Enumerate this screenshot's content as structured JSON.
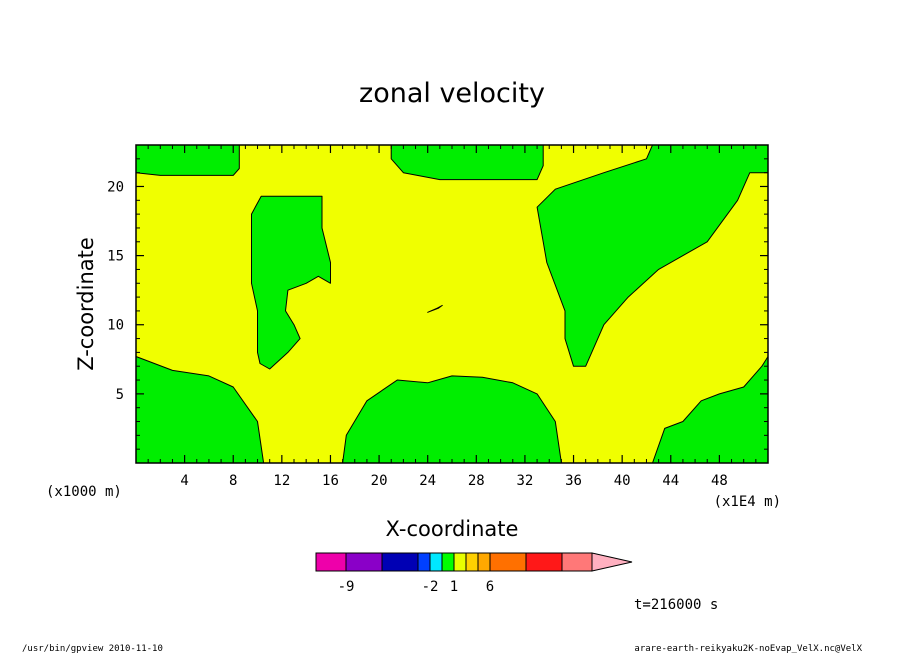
{
  "chart_data": {
    "type": "heatmap",
    "title": "zonal velocity",
    "xlabel": "X-coordinate",
    "ylabel": "Z-coordinate",
    "x_unit_left": "(x1000 m)",
    "x_unit_right": "(x1E4 m)",
    "xlim": [
      0,
      52
    ],
    "ylim": [
      0,
      23
    ],
    "xticks": [
      4,
      8,
      12,
      16,
      20,
      24,
      28,
      32,
      36,
      40,
      44,
      48
    ],
    "yticks": [
      5,
      10,
      15,
      20
    ],
    "colors": {
      "negative_region": "#00ee00",
      "positive_region": "#f0ff00"
    },
    "regions": [
      {
        "level": "green",
        "polygon": [
          [
            0,
            23
          ],
          [
            8.5,
            23
          ],
          [
            8.5,
            21.3
          ],
          [
            8,
            20.8
          ],
          [
            2,
            20.8
          ],
          [
            0,
            21
          ]
        ]
      },
      {
        "level": "green",
        "polygon": [
          [
            21,
            23
          ],
          [
            33.5,
            23
          ],
          [
            33.5,
            21.5
          ],
          [
            33,
            20.5
          ],
          [
            25,
            20.5
          ],
          [
            22,
            21
          ],
          [
            21,
            22
          ]
        ]
      },
      {
        "level": "green",
        "polygon": [
          [
            42.5,
            23
          ],
          [
            52,
            23
          ],
          [
            52,
            21
          ],
          [
            50.5,
            21
          ],
          [
            49.5,
            19
          ],
          [
            47,
            16
          ],
          [
            43,
            14
          ],
          [
            40.5,
            12
          ],
          [
            38.5,
            10
          ],
          [
            37,
            7
          ],
          [
            36,
            7
          ],
          [
            35.3,
            9
          ],
          [
            35.3,
            11
          ],
          [
            33.8,
            14.5
          ],
          [
            33.5,
            16
          ],
          [
            33,
            18.5
          ],
          [
            34.5,
            19.8
          ],
          [
            38.5,
            21
          ],
          [
            42,
            22
          ]
        ]
      },
      {
        "level": "green",
        "polygon": [
          [
            10.3,
            19.3
          ],
          [
            15.3,
            19.3
          ],
          [
            15.3,
            17
          ],
          [
            16,
            14.5
          ],
          [
            16,
            13
          ],
          [
            15,
            13.5
          ],
          [
            14,
            13
          ],
          [
            12.5,
            12.5
          ],
          [
            12.3,
            11
          ],
          [
            13,
            10
          ],
          [
            13.5,
            9
          ],
          [
            12.5,
            8
          ],
          [
            11,
            6.8
          ],
          [
            10.2,
            7.2
          ],
          [
            10,
            8
          ],
          [
            10,
            11
          ],
          [
            9.5,
            13
          ],
          [
            9.5,
            16
          ],
          [
            9.5,
            18
          ]
        ]
      },
      {
        "level": "green",
        "polygon": [
          [
            0,
            7.7
          ],
          [
            3,
            6.7
          ],
          [
            6,
            6.3
          ],
          [
            8,
            5.5
          ],
          [
            10,
            3
          ],
          [
            10.5,
            0
          ],
          [
            0,
            0
          ]
        ]
      },
      {
        "level": "green",
        "polygon": [
          [
            17,
            0
          ],
          [
            17.3,
            2
          ],
          [
            19,
            4.5
          ],
          [
            21.5,
            6
          ],
          [
            24,
            5.8
          ],
          [
            26,
            6.3
          ],
          [
            28.5,
            6.2
          ],
          [
            31,
            5.8
          ],
          [
            33,
            5
          ],
          [
            34.5,
            3
          ],
          [
            35,
            0
          ]
        ]
      },
      {
        "level": "green",
        "polygon": [
          [
            42.5,
            0
          ],
          [
            43.5,
            2.5
          ],
          [
            45,
            3
          ],
          [
            46.5,
            4.5
          ],
          [
            48,
            5
          ],
          [
            50,
            5.5
          ],
          [
            51.5,
            7
          ],
          [
            52,
            7.7
          ],
          [
            52,
            0
          ]
        ]
      },
      {
        "level": "green",
        "polygon": [
          [
            24,
            10.9
          ],
          [
            24.8,
            11.2
          ],
          [
            25.2,
            11.4
          ],
          [
            24.9,
            11.2
          ],
          [
            24.3,
            11
          ]
        ]
      }
    ]
  },
  "colorbar": {
    "colors": [
      "#ee00aa",
      "#8a00c8",
      "#0000b4",
      "#0040ff",
      "#00e8ff",
      "#00ff00",
      "#e8ff00",
      "#ffd000",
      "#ffa800",
      "#ff7000",
      "#ff1818",
      "#ff7878",
      "#ffb0c0"
    ],
    "tick_labels": [
      "-9",
      "-2",
      "1",
      "6"
    ]
  },
  "time_label": "t=216000 s",
  "footer_left": "/usr/bin/gpview   2010-11-10",
  "footer_right": "arare-earth-reikyaku2K-noEvap_VelX.nc@VelX"
}
